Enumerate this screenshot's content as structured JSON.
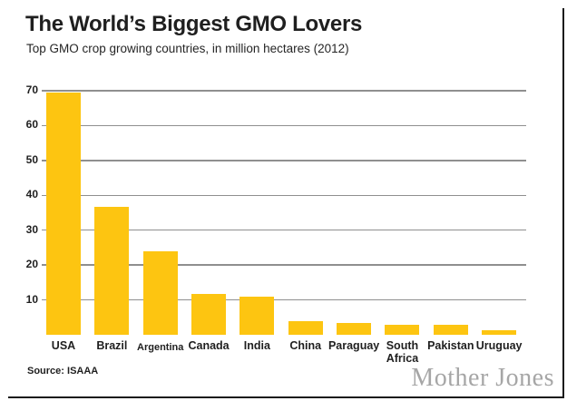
{
  "colors": {
    "bar": "#FDC511",
    "gridline": "#8F8F8F",
    "text": "#1F1F1F",
    "logo_gray": "#A6A6A6",
    "border": "#1A1A1A"
  },
  "chart_data": {
    "type": "bar",
    "title": "The World’s Biggest GMO Lovers",
    "subtitle": "Top GMO crop growing countries, in million hectares (2012)",
    "categories": [
      "USA",
      "Brazil",
      "Argentina",
      "Canada",
      "India",
      "China",
      "Paraguay",
      "South Africa",
      "Pakistan",
      "Uruguay"
    ],
    "values": [
      69.5,
      36.6,
      23.9,
      11.6,
      10.8,
      4.0,
      3.4,
      2.9,
      2.8,
      1.4
    ],
    "xlabel": "",
    "ylabel": "",
    "ylim": [
      0,
      70
    ],
    "yticks": [
      10,
      20,
      30,
      40,
      50,
      60,
      70
    ],
    "grid": true,
    "legend": false,
    "source": "Source: ISAAA",
    "credit": "Mother Jones"
  }
}
